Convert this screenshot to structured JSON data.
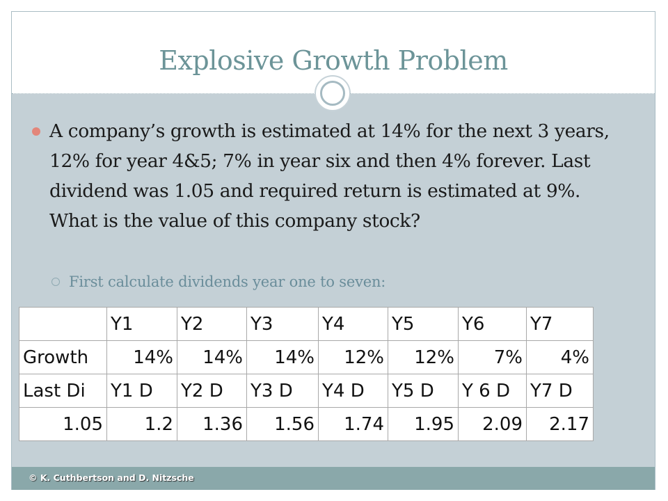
{
  "slide": {
    "title": "Explosive Growth Problem",
    "bullet": "A company’s growth is estimated at 14% for the next 3 years, 12% for year 4&5; 7% in year six and then 4% forever. Last dividend was 1.05 and required return is estimated at 9%. What is the value of this company stock?",
    "sub_bullet": "First calculate dividends year one to seven:",
    "footer": "© K. Cuthbertson and D. Nitzsche"
  },
  "table": {
    "rows": [
      [
        "",
        "Y1",
        "Y2",
        "Y3",
        "Y4",
        "Y5",
        "Y6",
        "Y7"
      ],
      [
        "Growth",
        "14%",
        "14%",
        "14%",
        "12%",
        "12%",
        "7%",
        "4%"
      ],
      [
        "Last Di",
        "Y1 D",
        "Y2 D",
        "Y3 D",
        "Y4 D",
        "Y5 D",
        "Y 6 D",
        "Y7 D"
      ],
      [
        "1.05",
        "1.2",
        "1.36",
        "1.56",
        "1.74",
        "1.95",
        "2.09",
        "2.17"
      ]
    ]
  },
  "colors": {
    "title": "#6c9498",
    "content_bg": "#c4d0d6",
    "bullet": "#e3867a",
    "footer_bg": "#8aa8aa"
  }
}
